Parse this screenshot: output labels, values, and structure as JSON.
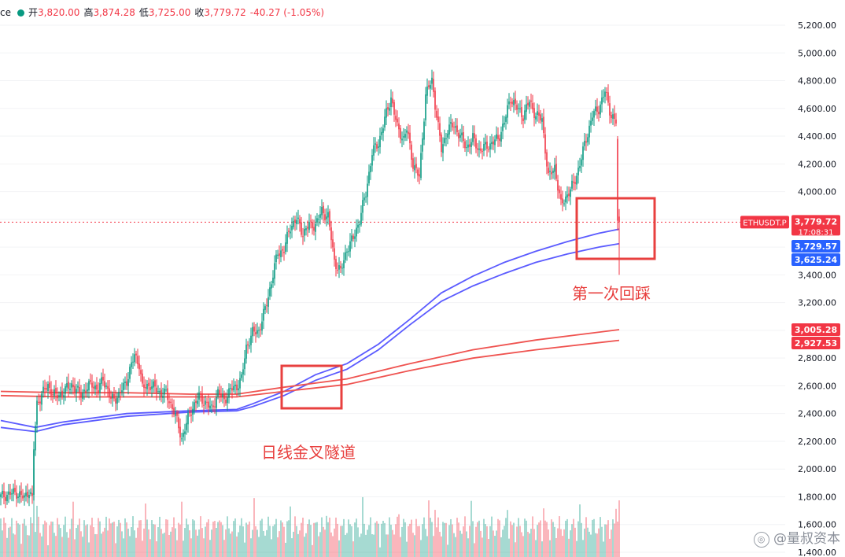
{
  "legend": {
    "symbol_fragment": "ce",
    "open_label": "开",
    "open_value": "3,820.00",
    "high_label": "高",
    "high_value": "3,874.28",
    "low_label": "低",
    "low_value": "3,725.00",
    "close_label": "收",
    "close_value": "3,779.72",
    "change": "-40.27 (-1.05%)"
  },
  "annotations": {
    "first_pullback": "第一次回踩",
    "golden_cross": "日线金叉隧道"
  },
  "watermark": {
    "text": "@量叔资本",
    "icon": "weibo-icon"
  },
  "colors": {
    "up": "#089981",
    "down": "#f23645",
    "ema_blue": "#5b5bff",
    "ema_red": "#ef5350",
    "box": "#e8403f",
    "price_tag_red": "#f23645",
    "price_tag_blue": "#2962ff"
  },
  "chart_data": {
    "type": "candlestick",
    "symbol": "ETHUSDT.P",
    "y_axis_labels": [
      "5,200.00",
      "5,000.00",
      "4,800.00",
      "4,600.00",
      "4,400.00",
      "4,200.00",
      "4,000.00",
      "3,800.00",
      "3,600.00",
      "3,400.00",
      "3,200.00",
      "3,000.00",
      "2,800.00",
      "2,600.00",
      "2,400.00",
      "2,200.00",
      "2,000.00",
      "1,800.00",
      "1,600.00",
      "1,400.00"
    ],
    "ylim": [
      1380,
      5310
    ],
    "last_price": 3779.72,
    "countdown": "17:08:31",
    "price_tags": [
      {
        "value": 3779.72,
        "label": "3,779.72",
        "color": "red"
      },
      {
        "value": 3729.57,
        "label": "3,729.57",
        "color": "blue"
      },
      {
        "value": 3625.24,
        "label": "3,625.24",
        "color": "blue"
      },
      {
        "value": 3005.28,
        "label": "3,005.28",
        "color": "red"
      },
      {
        "value": 2927.53,
        "label": "2,927.53",
        "color": "red"
      }
    ],
    "anchors": [
      [
        0,
        1800
      ],
      [
        5,
        1820
      ],
      [
        10,
        1830
      ],
      [
        15,
        1790
      ],
      [
        18,
        1850
      ],
      [
        20,
        1780
      ],
      [
        21,
        2150
      ],
      [
        23,
        2470
      ],
      [
        26,
        2540
      ],
      [
        30,
        2600
      ],
      [
        35,
        2520
      ],
      [
        40,
        2560
      ],
      [
        45,
        2610
      ],
      [
        50,
        2540
      ],
      [
        55,
        2580
      ],
      [
        58,
        2620
      ],
      [
        62,
        2560
      ],
      [
        65,
        2660
      ],
      [
        70,
        2500
      ],
      [
        75,
        2530
      ],
      [
        80,
        2640
      ],
      [
        85,
        2820
      ],
      [
        88,
        2760
      ],
      [
        90,
        2580
      ],
      [
        95,
        2610
      ],
      [
        100,
        2560
      ],
      [
        105,
        2540
      ],
      [
        110,
        2420
      ],
      [
        115,
        2220
      ],
      [
        118,
        2330
      ],
      [
        122,
        2450
      ],
      [
        126,
        2520
      ],
      [
        130,
        2480
      ],
      [
        134,
        2430
      ],
      [
        138,
        2550
      ],
      [
        142,
        2500
      ],
      [
        146,
        2570
      ],
      [
        150,
        2600
      ],
      [
        153,
        2650
      ],
      [
        156,
        2880
      ],
      [
        160,
        2980
      ],
      [
        164,
        3000
      ],
      [
        168,
        3150
      ],
      [
        172,
        3350
      ],
      [
        176,
        3560
      ],
      [
        180,
        3580
      ],
      [
        184,
        3750
      ],
      [
        188,
        3800
      ],
      [
        192,
        3700
      ],
      [
        196,
        3760
      ],
      [
        200,
        3760
      ],
      [
        204,
        3860
      ],
      [
        208,
        3820
      ],
      [
        212,
        3500
      ],
      [
        216,
        3420
      ],
      [
        220,
        3590
      ],
      [
        224,
        3660
      ],
      [
        228,
        3800
      ],
      [
        232,
        3990
      ],
      [
        236,
        4280
      ],
      [
        240,
        4350
      ],
      [
        244,
        4520
      ],
      [
        248,
        4680
      ],
      [
        252,
        4460
      ],
      [
        256,
        4380
      ],
      [
        258,
        4450
      ],
      [
        262,
        4200
      ],
      [
        266,
        4100
      ],
      [
        270,
        4700
      ],
      [
        274,
        4800
      ],
      [
        277,
        4550
      ],
      [
        280,
        4300
      ],
      [
        284,
        4450
      ],
      [
        288,
        4480
      ],
      [
        292,
        4400
      ],
      [
        296,
        4320
      ],
      [
        300,
        4380
      ],
      [
        304,
        4300
      ],
      [
        308,
        4320
      ],
      [
        312,
        4350
      ],
      [
        316,
        4380
      ],
      [
        320,
        4500
      ],
      [
        324,
        4680
      ],
      [
        328,
        4600
      ],
      [
        332,
        4550
      ],
      [
        336,
        4650
      ],
      [
        340,
        4550
      ],
      [
        344,
        4520
      ],
      [
        348,
        4100
      ],
      [
        352,
        4180
      ],
      [
        356,
        3900
      ],
      [
        360,
        3980
      ],
      [
        364,
        4050
      ],
      [
        368,
        4200
      ],
      [
        372,
        4380
      ],
      [
        376,
        4550
      ],
      [
        380,
        4600
      ],
      [
        384,
        4720
      ],
      [
        388,
        4550
      ],
      [
        391,
        4500
      ],
      [
        392,
        3790
      ],
      [
        393,
        3780
      ]
    ],
    "ema_blue_1": [
      [
        0,
        2350
      ],
      [
        22,
        2300
      ],
      [
        40,
        2340
      ],
      [
        80,
        2400
      ],
      [
        120,
        2420
      ],
      [
        150,
        2430
      ],
      [
        160,
        2470
      ],
      [
        180,
        2560
      ],
      [
        200,
        2680
      ],
      [
        220,
        2760
      ],
      [
        240,
        2900
      ],
      [
        260,
        3080
      ],
      [
        280,
        3270
      ],
      [
        300,
        3390
      ],
      [
        320,
        3490
      ],
      [
        340,
        3570
      ],
      [
        360,
        3640
      ],
      [
        380,
        3700
      ],
      [
        393,
        3730
      ]
    ],
    "ema_blue_2": [
      [
        0,
        2300
      ],
      [
        22,
        2270
      ],
      [
        40,
        2320
      ],
      [
        80,
        2380
      ],
      [
        120,
        2410
      ],
      [
        150,
        2420
      ],
      [
        160,
        2450
      ],
      [
        180,
        2530
      ],
      [
        200,
        2640
      ],
      [
        220,
        2720
      ],
      [
        240,
        2860
      ],
      [
        260,
        3040
      ],
      [
        280,
        3210
      ],
      [
        300,
        3320
      ],
      [
        320,
        3410
      ],
      [
        340,
        3490
      ],
      [
        360,
        3550
      ],
      [
        380,
        3600
      ],
      [
        393,
        3625
      ]
    ],
    "ema_red_1": [
      [
        0,
        2560
      ],
      [
        40,
        2550
      ],
      [
        80,
        2550
      ],
      [
        120,
        2540
      ],
      [
        150,
        2540
      ],
      [
        180,
        2590
      ],
      [
        220,
        2650
      ],
      [
        260,
        2760
      ],
      [
        300,
        2860
      ],
      [
        340,
        2930
      ],
      [
        393,
        3005
      ]
    ],
    "ema_red_2": [
      [
        0,
        2530
      ],
      [
        40,
        2520
      ],
      [
        80,
        2520
      ],
      [
        120,
        2520
      ],
      [
        150,
        2520
      ],
      [
        180,
        2560
      ],
      [
        220,
        2610
      ],
      [
        260,
        2710
      ],
      [
        300,
        2800
      ],
      [
        340,
        2860
      ],
      [
        393,
        2928
      ]
    ]
  }
}
